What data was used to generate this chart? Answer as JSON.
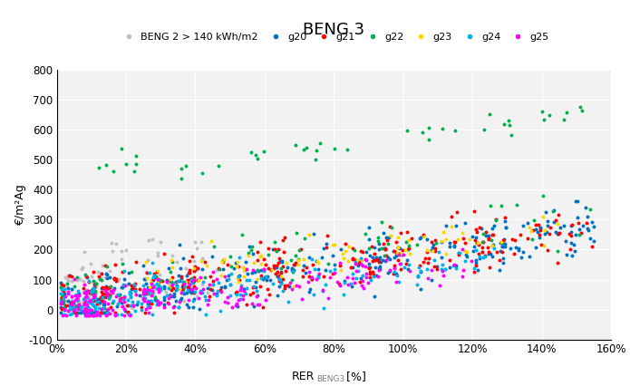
{
  "title": "BENG 3",
  "xlabel_main": "RER",
  "xlabel_sub": "BENG3",
  "xlabel_unit": "[%]",
  "ylabel": "€/m²Ag",
  "xlim": [
    0.0,
    1.6
  ],
  "ylim": [
    -100,
    800
  ],
  "xticks": [
    0.0,
    0.2,
    0.4,
    0.6,
    0.8,
    1.0,
    1.2,
    1.4,
    1.6
  ],
  "xtick_labels": [
    "0%",
    "20%",
    "40%",
    "60%",
    "80%",
    "100%",
    "120%",
    "140%",
    "160%"
  ],
  "yticks": [
    -100,
    0,
    100,
    200,
    300,
    400,
    500,
    600,
    700,
    800
  ],
  "series": {
    "BENG 2 > 140 kWh/m2": {
      "color": "#c0c0c0",
      "marker": "o",
      "size": 8
    },
    "g20": {
      "color": "#0070c0",
      "marker": "o",
      "size": 8
    },
    "g21": {
      "color": "#ff0000",
      "marker": "o",
      "size": 8
    },
    "g22": {
      "color": "#00b050",
      "marker": "o",
      "size": 8
    },
    "g23": {
      "color": "#ffd700",
      "marker": "o",
      "size": 8
    },
    "g24": {
      "color": "#00b0f0",
      "marker": "o",
      "size": 8
    },
    "g25": {
      "color": "#ff00ff",
      "marker": "o",
      "size": 8
    }
  },
  "background_color": "#f2f2f2",
  "grid_color": "#ffffff",
  "seed": 42
}
